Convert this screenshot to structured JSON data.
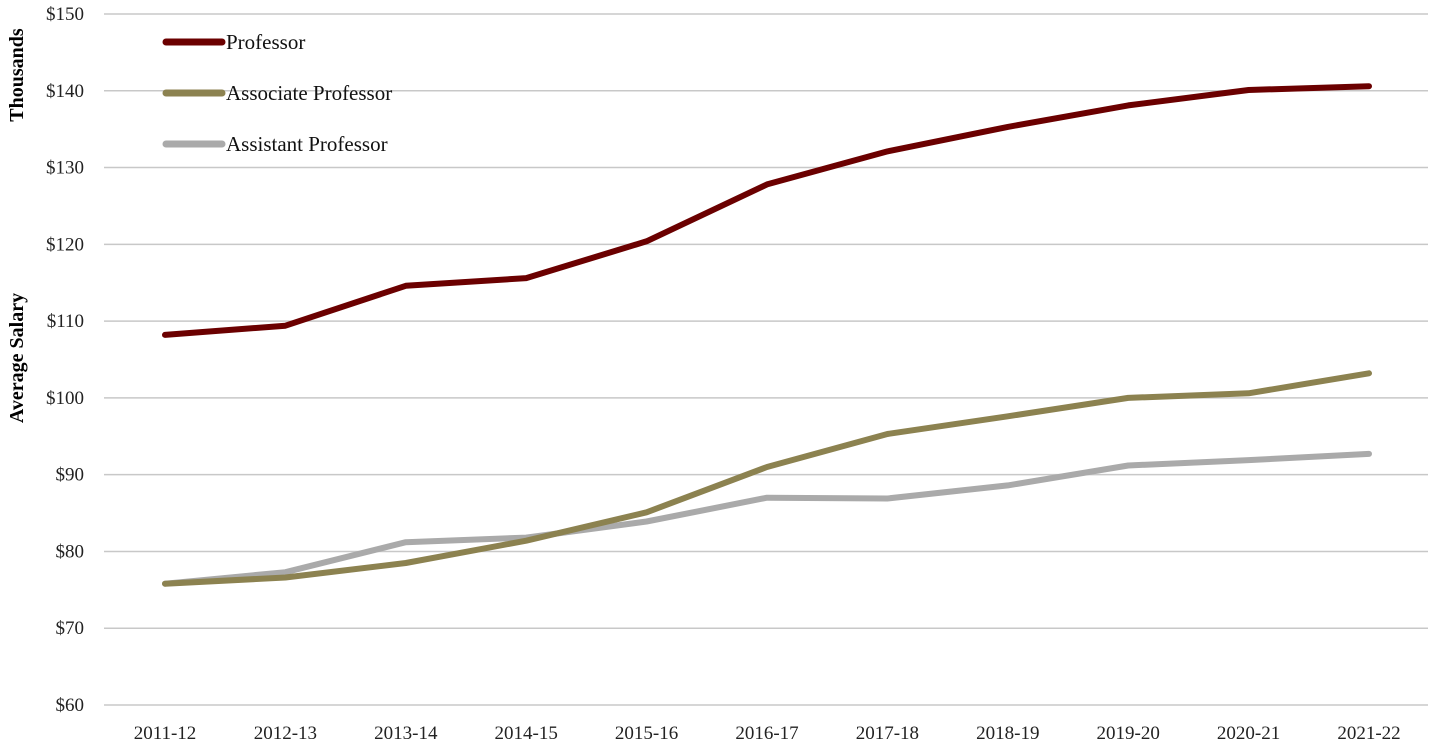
{
  "chart_data": {
    "type": "line",
    "title": "",
    "xlabel": "",
    "ylabel": "Average Salary",
    "y_unit_label": "Thousands",
    "categories": [
      "2011-12",
      "2012-13",
      "2013-14",
      "2014-15",
      "2015-16",
      "2016-17",
      "2017-18",
      "2018-19",
      "2019-20",
      "2020-21",
      "2021-22"
    ],
    "ylim": [
      60,
      150
    ],
    "yticks": [
      60,
      70,
      80,
      90,
      100,
      110,
      120,
      130,
      140,
      150
    ],
    "ytick_labels": [
      "$60",
      "$70",
      "$80",
      "$90",
      "$100",
      "$110",
      "$120",
      "$130",
      "$140",
      "$150"
    ],
    "grid": true,
    "legend_position": "top-left",
    "series": [
      {
        "name": "Professor",
        "color": "#6b0000",
        "values": [
          108.2,
          109.4,
          114.6,
          115.6,
          120.4,
          127.8,
          132.1,
          135.3,
          138.1,
          140.1,
          140.6
        ]
      },
      {
        "name": "Associate Professor",
        "color": "#8c8250",
        "values": [
          75.8,
          76.6,
          78.5,
          81.4,
          85.1,
          91.0,
          95.3,
          97.6,
          100.0,
          100.6,
          103.2
        ]
      },
      {
        "name": "Assistant Professor",
        "color": "#aaaaaa",
        "values": [
          75.8,
          77.3,
          81.2,
          81.8,
          83.9,
          87.0,
          86.9,
          88.6,
          91.2,
          91.9,
          92.7
        ]
      }
    ]
  }
}
